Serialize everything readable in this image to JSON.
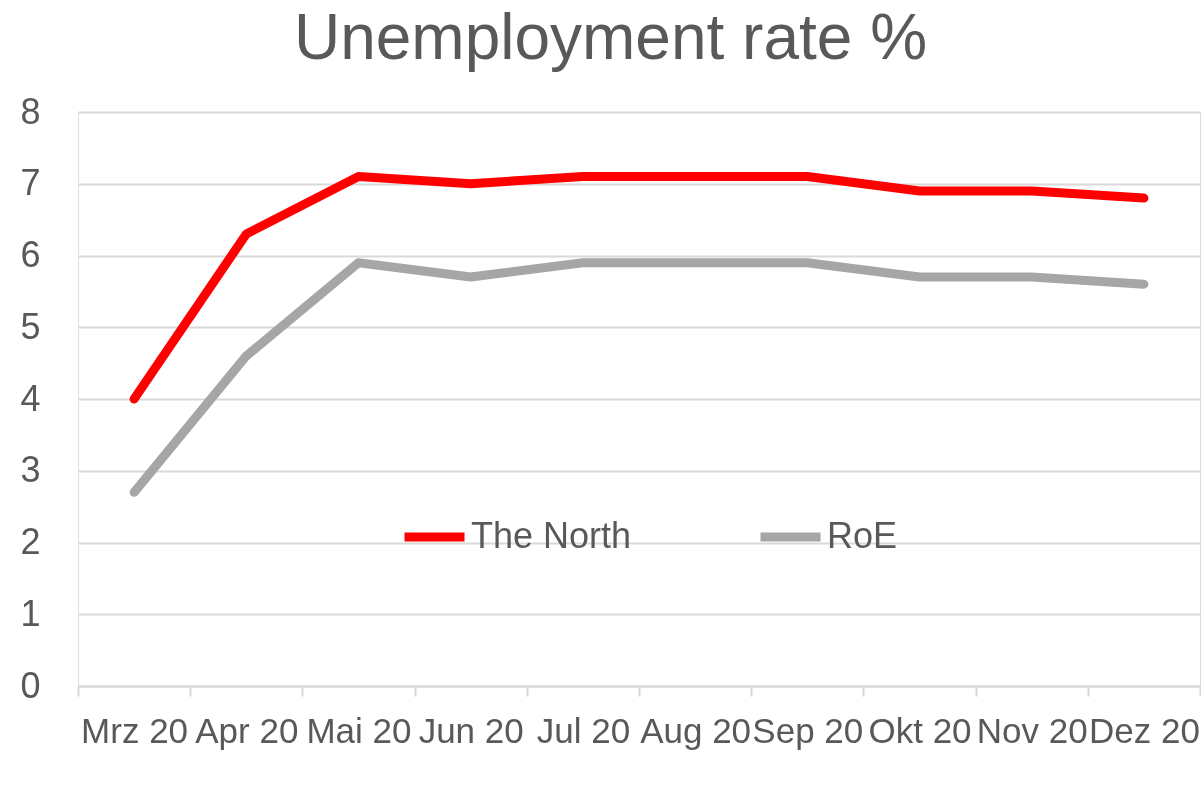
{
  "chart_data": {
    "type": "line",
    "title": "Unemployment rate %",
    "categories": [
      "Mrz 20",
      "Apr 20",
      "Mai 20",
      "Jun 20",
      "Jul 20",
      "Aug 20",
      "Sep 20",
      "Okt 20",
      "Nov 20",
      "Dez 20"
    ],
    "series": [
      {
        "name": "The North",
        "color": "#ff0000",
        "values": [
          4.0,
          6.3,
          7.1,
          7.0,
          7.1,
          7.1,
          7.1,
          6.9,
          6.9,
          6.8
        ]
      },
      {
        "name": "RoE",
        "color": "#a6a6a6",
        "values": [
          2.7,
          4.6,
          5.9,
          5.7,
          5.9,
          5.9,
          5.9,
          5.7,
          5.7,
          5.6
        ]
      }
    ],
    "ylim": [
      0,
      8
    ],
    "yticks": [
      0,
      1,
      2,
      3,
      4,
      5,
      6,
      7,
      8
    ],
    "grid": "y",
    "legend": "bottom"
  }
}
